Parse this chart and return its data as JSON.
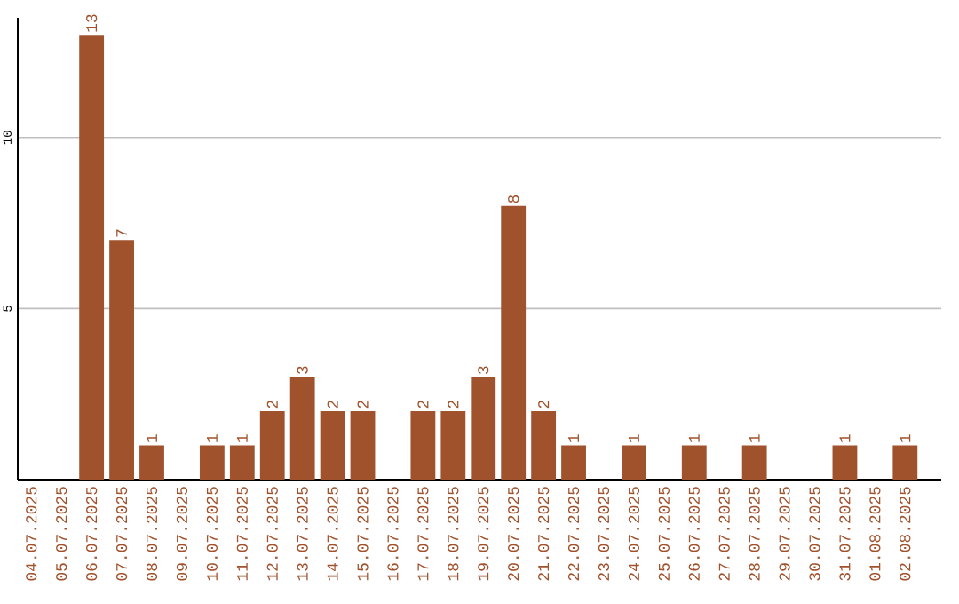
{
  "chart_data": {
    "type": "bar",
    "categories": [
      "04.07.2025",
      "05.07.2025",
      "06.07.2025",
      "07.07.2025",
      "08.07.2025",
      "09.07.2025",
      "10.07.2025",
      "11.07.2025",
      "12.07.2025",
      "13.07.2025",
      "14.07.2025",
      "15.07.2025",
      "16.07.2025",
      "17.07.2025",
      "18.07.2025",
      "19.07.2025",
      "20.07.2025",
      "21.07.2025",
      "22.07.2025",
      "23.07.2025",
      "24.07.2025",
      "25.07.2025",
      "26.07.2025",
      "27.07.2025",
      "28.07.2025",
      "29.07.2025",
      "30.07.2025",
      "31.07.2025",
      "01.08.2025",
      "02.08.2025"
    ],
    "values": [
      0,
      0,
      13,
      7,
      1,
      0,
      1,
      1,
      2,
      3,
      2,
      2,
      0,
      2,
      2,
      3,
      8,
      2,
      1,
      0,
      1,
      0,
      1,
      0,
      1,
      0,
      0,
      1,
      0,
      1
    ],
    "value_labels": [
      null,
      null,
      "13",
      "7",
      "1",
      null,
      "1",
      "1",
      "2",
      "3",
      "2",
      "2",
      null,
      "2",
      "2",
      "3",
      "8",
      "2",
      "1",
      null,
      "1",
      null,
      "1",
      null,
      "1",
      null,
      null,
      "1",
      null,
      "1"
    ],
    "color": "#a0522d",
    "ylim": [
      0,
      13.5
    ],
    "yticks": [
      5,
      10
    ],
    "grid": "y"
  }
}
